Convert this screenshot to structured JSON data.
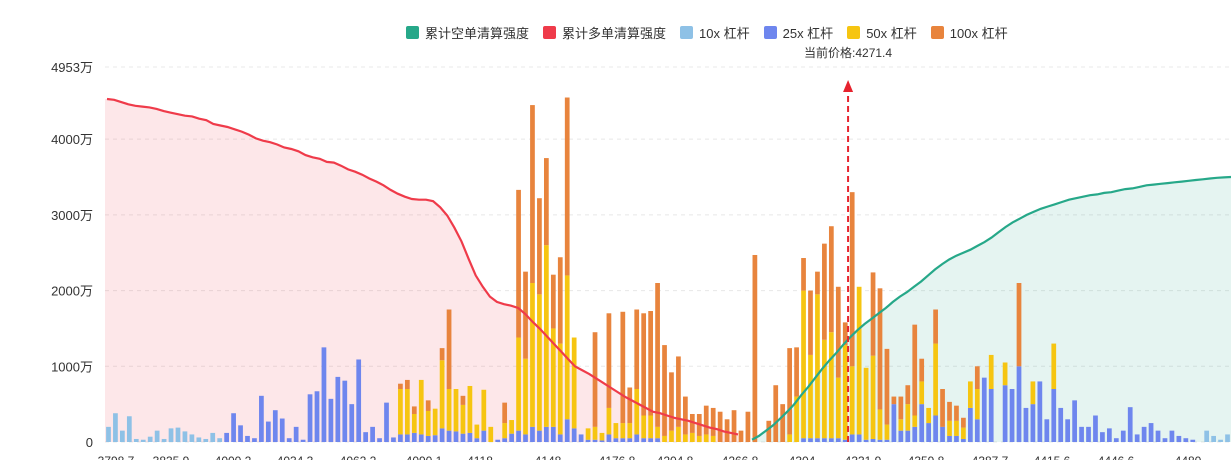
{
  "chart_data": {
    "type": "bar",
    "title": "",
    "current_price_label": "当前价格:4271.4",
    "current_price": 4271.4,
    "y_ticks": [
      "0",
      "1000万",
      "2000万",
      "3000万",
      "4000万",
      "4953万"
    ],
    "y_max": 4953,
    "y_unit": "万",
    "x_range": [
      3798.7,
      4515
    ],
    "x_tick_values": [
      3798.7,
      3835.9,
      4000.2,
      4034.3,
      4062.2,
      4090.1,
      4118,
      4148,
      4176.8,
      4204.8,
      4266.8,
      4304,
      4331.9,
      4359.8,
      4387.7,
      4415.6,
      4446.6,
      4480
    ],
    "x_tick_labels": [
      "3798.7",
      "3835.9",
      "4000.2",
      "4034.3",
      "4062.2",
      "4090.1",
      "4118",
      "4148",
      "4176.8",
      "4204.8",
      "4266.8",
      "4304",
      "4331.9",
      "4359.8",
      "4387.7",
      "4415.6",
      "4446.6",
      "4480"
    ],
    "legend": [
      {
        "name": "累计空单清算强度",
        "color": "#26a889"
      },
      {
        "name": "累计多单清算强度",
        "color": "#ef3b4a"
      },
      {
        "name": "10x 杠杆",
        "color": "#8ec1e6"
      },
      {
        "name": "25x 杠杆",
        "color": "#6e86ee"
      },
      {
        "name": "50x 杠杆",
        "color": "#f6c511"
      },
      {
        "name": "100x 杠杆",
        "color": "#e8843d"
      }
    ],
    "bar_series_colors": [
      "#8ec1e6",
      "#6e86ee",
      "#f6c511",
      "#e8843d"
    ],
    "bars": [
      [
        200,
        0,
        0,
        0
      ],
      [
        380,
        0,
        0,
        0
      ],
      [
        150,
        0,
        0,
        0
      ],
      [
        340,
        0,
        0,
        0
      ],
      [
        40,
        0,
        0,
        0
      ],
      [
        30,
        0,
        0,
        0
      ],
      [
        70,
        0,
        0,
        0
      ],
      [
        150,
        0,
        0,
        0
      ],
      [
        40,
        0,
        0,
        0
      ],
      [
        180,
        0,
        0,
        0
      ],
      [
        190,
        0,
        0,
        0
      ],
      [
        140,
        0,
        0,
        0
      ],
      [
        100,
        0,
        0,
        0
      ],
      [
        60,
        0,
        0,
        0
      ],
      [
        40,
        0,
        0,
        0
      ],
      [
        120,
        0,
        0,
        0
      ],
      [
        50,
        0,
        0,
        0
      ],
      [
        0,
        120,
        0,
        0
      ],
      [
        0,
        380,
        0,
        0
      ],
      [
        0,
        220,
        0,
        0
      ],
      [
        0,
        80,
        0,
        0
      ],
      [
        0,
        50,
        0,
        0
      ],
      [
        0,
        610,
        0,
        0
      ],
      [
        0,
        270,
        0,
        0
      ],
      [
        0,
        420,
        0,
        0
      ],
      [
        0,
        310,
        0,
        0
      ],
      [
        0,
        50,
        0,
        0
      ],
      [
        0,
        200,
        0,
        0
      ],
      [
        0,
        30,
        0,
        0
      ],
      [
        0,
        630,
        0,
        0
      ],
      [
        0,
        670,
        0,
        0
      ],
      [
        0,
        1250,
        0,
        0
      ],
      [
        0,
        570,
        0,
        0
      ],
      [
        0,
        860,
        0,
        0
      ],
      [
        0,
        810,
        0,
        0
      ],
      [
        0,
        500,
        0,
        0
      ],
      [
        0,
        1090,
        0,
        0
      ],
      [
        0,
        130,
        0,
        0
      ],
      [
        0,
        200,
        0,
        0
      ],
      [
        0,
        50,
        0,
        0
      ],
      [
        0,
        520,
        0,
        0
      ],
      [
        0,
        60,
        0,
        0
      ],
      [
        0,
        100,
        600,
        70
      ],
      [
        0,
        100,
        600,
        120
      ],
      [
        0,
        120,
        250,
        100
      ],
      [
        0,
        100,
        720,
        0
      ],
      [
        0,
        80,
        330,
        140
      ],
      [
        0,
        90,
        350,
        0
      ],
      [
        0,
        180,
        900,
        160
      ],
      [
        0,
        150,
        550,
        1050
      ],
      [
        0,
        140,
        560,
        0
      ],
      [
        0,
        110,
        380,
        120
      ],
      [
        0,
        120,
        620,
        0
      ],
      [
        0,
        50,
        180,
        0
      ],
      [
        0,
        150,
        540,
        0
      ],
      [
        0,
        0,
        200,
        0
      ],
      [
        0,
        30,
        0,
        0
      ],
      [
        0,
        50,
        200,
        270
      ],
      [
        0,
        110,
        180,
        0
      ],
      [
        0,
        150,
        1230,
        1950
      ],
      [
        0,
        100,
        1000,
        1150
      ],
      [
        0,
        200,
        1900,
        2350
      ],
      [
        0,
        150,
        1800,
        1270
      ],
      [
        0,
        200,
        2400,
        1150
      ],
      [
        0,
        200,
        1300,
        710
      ],
      [
        0,
        100,
        1200,
        1140
      ],
      [
        0,
        300,
        1900,
        2350
      ],
      [
        0,
        180,
        1200,
        0
      ],
      [
        0,
        100,
        0,
        0
      ],
      [
        0,
        30,
        150,
        0
      ],
      [
        0,
        30,
        170,
        1250
      ],
      [
        0,
        20,
        100,
        0
      ],
      [
        0,
        100,
        350,
        1250
      ],
      [
        0,
        50,
        200,
        0
      ],
      [
        0,
        50,
        200,
        1470
      ],
      [
        0,
        50,
        200,
        470
      ],
      [
        0,
        100,
        600,
        1050
      ],
      [
        0,
        50,
        300,
        1350
      ],
      [
        0,
        50,
        300,
        1380
      ],
      [
        0,
        50,
        150,
        1900
      ],
      [
        0,
        0,
        80,
        1200
      ],
      [
        0,
        0,
        150,
        770
      ],
      [
        0,
        0,
        200,
        930
      ],
      [
        0,
        0,
        100,
        500
      ],
      [
        0,
        0,
        120,
        250
      ],
      [
        0,
        0,
        80,
        290
      ],
      [
        0,
        0,
        100,
        380
      ],
      [
        0,
        0,
        80,
        370
      ],
      [
        0,
        0,
        0,
        400
      ],
      [
        0,
        0,
        0,
        300
      ],
      [
        0,
        0,
        0,
        420
      ],
      [
        0,
        0,
        0,
        150
      ],
      [
        0,
        0,
        0,
        400
      ],
      [
        0,
        0,
        0,
        2470
      ],
      [
        0,
        0,
        0,
        0
      ],
      [
        0,
        0,
        0,
        280
      ],
      [
        0,
        0,
        0,
        750
      ],
      [
        0,
        0,
        0,
        500
      ],
      [
        0,
        0,
        100,
        1140
      ],
      [
        0,
        0,
        600,
        650
      ],
      [
        0,
        50,
        1950,
        430
      ],
      [
        0,
        50,
        1100,
        850
      ],
      [
        0,
        50,
        1900,
        300
      ],
      [
        0,
        50,
        1300,
        1270
      ],
      [
        0,
        50,
        1400,
        1400
      ],
      [
        0,
        50,
        800,
        1200
      ],
      [
        0,
        30,
        1250,
        300
      ],
      [
        0,
        100,
        900,
        2300
      ],
      [
        0,
        100,
        1950,
        0
      ],
      [
        0,
        30,
        950,
        0
      ],
      [
        0,
        40,
        1100,
        1100
      ],
      [
        0,
        30,
        400,
        1600
      ],
      [
        0,
        30,
        200,
        1000
      ],
      [
        0,
        500,
        0,
        100
      ],
      [
        0,
        150,
        150,
        300
      ],
      [
        0,
        150,
        350,
        250
      ],
      [
        0,
        200,
        150,
        1200
      ],
      [
        0,
        500,
        300,
        300
      ],
      [
        0,
        250,
        200,
        0
      ],
      [
        0,
        350,
        950,
        450
      ],
      [
        0,
        200,
        0,
        500
      ],
      [
        0,
        80,
        200,
        250
      ],
      [
        0,
        80,
        200,
        200
      ],
      [
        0,
        40,
        150,
        130
      ],
      [
        0,
        450,
        350,
        0
      ],
      [
        0,
        300,
        400,
        300
      ],
      [
        0,
        850,
        0,
        0
      ],
      [
        0,
        700,
        450,
        0
      ],
      [
        0,
        0,
        0,
        0
      ],
      [
        0,
        750,
        300,
        0
      ],
      [
        0,
        700,
        0,
        0
      ],
      [
        0,
        1000,
        0,
        1100
      ],
      [
        0,
        450,
        0,
        0
      ],
      [
        0,
        500,
        300,
        0
      ],
      [
        0,
        800,
        0,
        0
      ],
      [
        0,
        300,
        0,
        0
      ],
      [
        0,
        700,
        600,
        0
      ],
      [
        0,
        450,
        0,
        0
      ],
      [
        0,
        300,
        0,
        0
      ],
      [
        0,
        550,
        0,
        0
      ],
      [
        0,
        200,
        0,
        0
      ],
      [
        0,
        200,
        0,
        0
      ],
      [
        0,
        350,
        0,
        0
      ],
      [
        0,
        130,
        0,
        0
      ],
      [
        0,
        180,
        0,
        0
      ],
      [
        0,
        50,
        0,
        0
      ],
      [
        0,
        150,
        0,
        0
      ],
      [
        0,
        460,
        0,
        0
      ],
      [
        0,
        100,
        0,
        0
      ],
      [
        0,
        200,
        0,
        0
      ],
      [
        0,
        250,
        0,
        0
      ],
      [
        0,
        150,
        0,
        0
      ],
      [
        0,
        50,
        0,
        0
      ],
      [
        0,
        150,
        0,
        0
      ],
      [
        0,
        80,
        0,
        0
      ],
      [
        0,
        50,
        0,
        0
      ],
      [
        0,
        30,
        0,
        0
      ],
      [
        0,
        0,
        0,
        0
      ],
      [
        150,
        0,
        0,
        0
      ],
      [
        80,
        0,
        0,
        0
      ],
      [
        30,
        0,
        0,
        0
      ],
      [
        100,
        0,
        0,
        0
      ]
    ],
    "long_cumulative": [
      4530,
      4520,
      4490,
      4460,
      4440,
      4430,
      4420,
      4400,
      4370,
      4350,
      4330,
      4310,
      4300,
      4270,
      4250,
      4200,
      4180,
      4160,
      4130,
      4100,
      4060,
      4010,
      3980,
      3960,
      3930,
      3890,
      3870,
      3840,
      3790,
      3760,
      3740,
      3700,
      3690,
      3650,
      3600,
      3570,
      3530,
      3480,
      3440,
      3390,
      3330,
      3280,
      3240,
      3210,
      3200,
      3200,
      3180,
      3100,
      2990,
      2830,
      2650,
      2420,
      2200,
      2050,
      1920,
      1850,
      1820,
      1800,
      1770,
      1690,
      1590,
      1500,
      1400,
      1300,
      1200,
      1100,
      1000,
      950,
      900,
      840,
      780,
      720,
      660,
      600,
      550,
      500,
      450,
      400,
      380,
      350,
      320,
      300,
      280,
      250,
      220,
      190,
      170,
      140,
      120,
      100
    ],
    "short_cumulative": [
      30,
      80,
      150,
      220,
      310,
      400,
      500,
      620,
      730,
      850,
      970,
      1080,
      1180,
      1290,
      1390,
      1480,
      1560,
      1630,
      1700,
      1770,
      1850,
      1920,
      1980,
      2050,
      2120,
      2200,
      2280,
      2350,
      2410,
      2460,
      2500,
      2540,
      2590,
      2640,
      2700,
      2770,
      2840,
      2900,
      2950,
      3000,
      3040,
      3080,
      3110,
      3140,
      3170,
      3200,
      3220,
      3240,
      3260,
      3270,
      3290,
      3300,
      3320,
      3340,
      3350,
      3370,
      3390,
      3400,
      3410,
      3420,
      3430,
      3440,
      3450,
      3460,
      3470,
      3480,
      3490,
      3495,
      3500
    ]
  }
}
